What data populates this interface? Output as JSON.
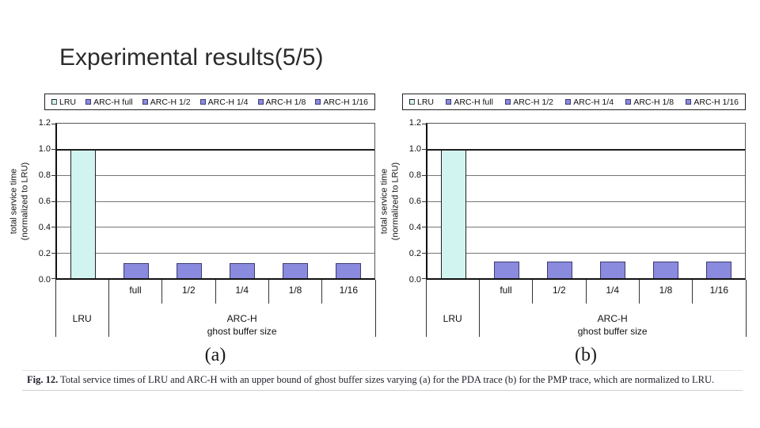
{
  "slide": {
    "title": "Experimental results(5/5)"
  },
  "colors": {
    "lru_fill": "#d2f4f0",
    "lru_border": "#222222",
    "arch_fill": "#8a8ade",
    "arch_border": "#3c3c72",
    "gridline": "#777777",
    "axis": "#111111"
  },
  "chart_data": [
    {
      "type": "bar",
      "panel_label": "(a)",
      "legend": [
        "LRU",
        "ARC-H full",
        "ARC-H 1/2",
        "ARC-H 1/4",
        "ARC-H 1/8",
        "ARC-H 1/16"
      ],
      "categories": [
        "LRU",
        "full",
        "1/2",
        "1/4",
        "1/8",
        "1/16"
      ],
      "values": [
        1.0,
        0.12,
        0.12,
        0.12,
        0.12,
        0.12
      ],
      "bar_series_type": [
        "lru",
        "arch",
        "arch",
        "arch",
        "arch",
        "arch"
      ],
      "ylabel_line1": "total service time",
      "ylabel_line2": "(normalized to LRU)",
      "yticks": [
        0.0,
        0.2,
        0.4,
        0.6,
        0.8,
        1.0,
        1.2
      ],
      "ylim": [
        0,
        1.2
      ],
      "grid": "horizontal",
      "group_axis": {
        "left_label": "LRU",
        "right_label_line1": "ARC-H",
        "right_label_line2": "ghost buffer size"
      }
    },
    {
      "type": "bar",
      "panel_label": "(b)",
      "legend": [
        "LRU",
        "ARC-H full",
        "ARC-H 1/2",
        "ARC-H 1/4",
        "ARC-H 1/8",
        "ARC-H 1/16"
      ],
      "categories": [
        "LRU",
        "full",
        "1/2",
        "1/4",
        "1/8",
        "1/16"
      ],
      "values": [
        1.0,
        0.13,
        0.13,
        0.13,
        0.13,
        0.13
      ],
      "bar_series_type": [
        "lru",
        "arch",
        "arch",
        "arch",
        "arch",
        "arch"
      ],
      "ylabel_line1": "total service time",
      "ylabel_line2": "(normalized to LRU)",
      "yticks": [
        0.0,
        0.2,
        0.4,
        0.6,
        0.8,
        1.0,
        1.2
      ],
      "ylim": [
        0,
        1.2
      ],
      "grid": "horizontal",
      "group_axis": {
        "left_label": "LRU",
        "right_label_line1": "ARC-H",
        "right_label_line2": "ghost buffer size"
      }
    }
  ],
  "caption": {
    "label": "Fig. 12.",
    "text": "Total service times of LRU and ARC-H with an upper bound of ghost buffer sizes varying (a) for the PDA trace (b) for the PMP trace, which are normalized to LRU."
  }
}
